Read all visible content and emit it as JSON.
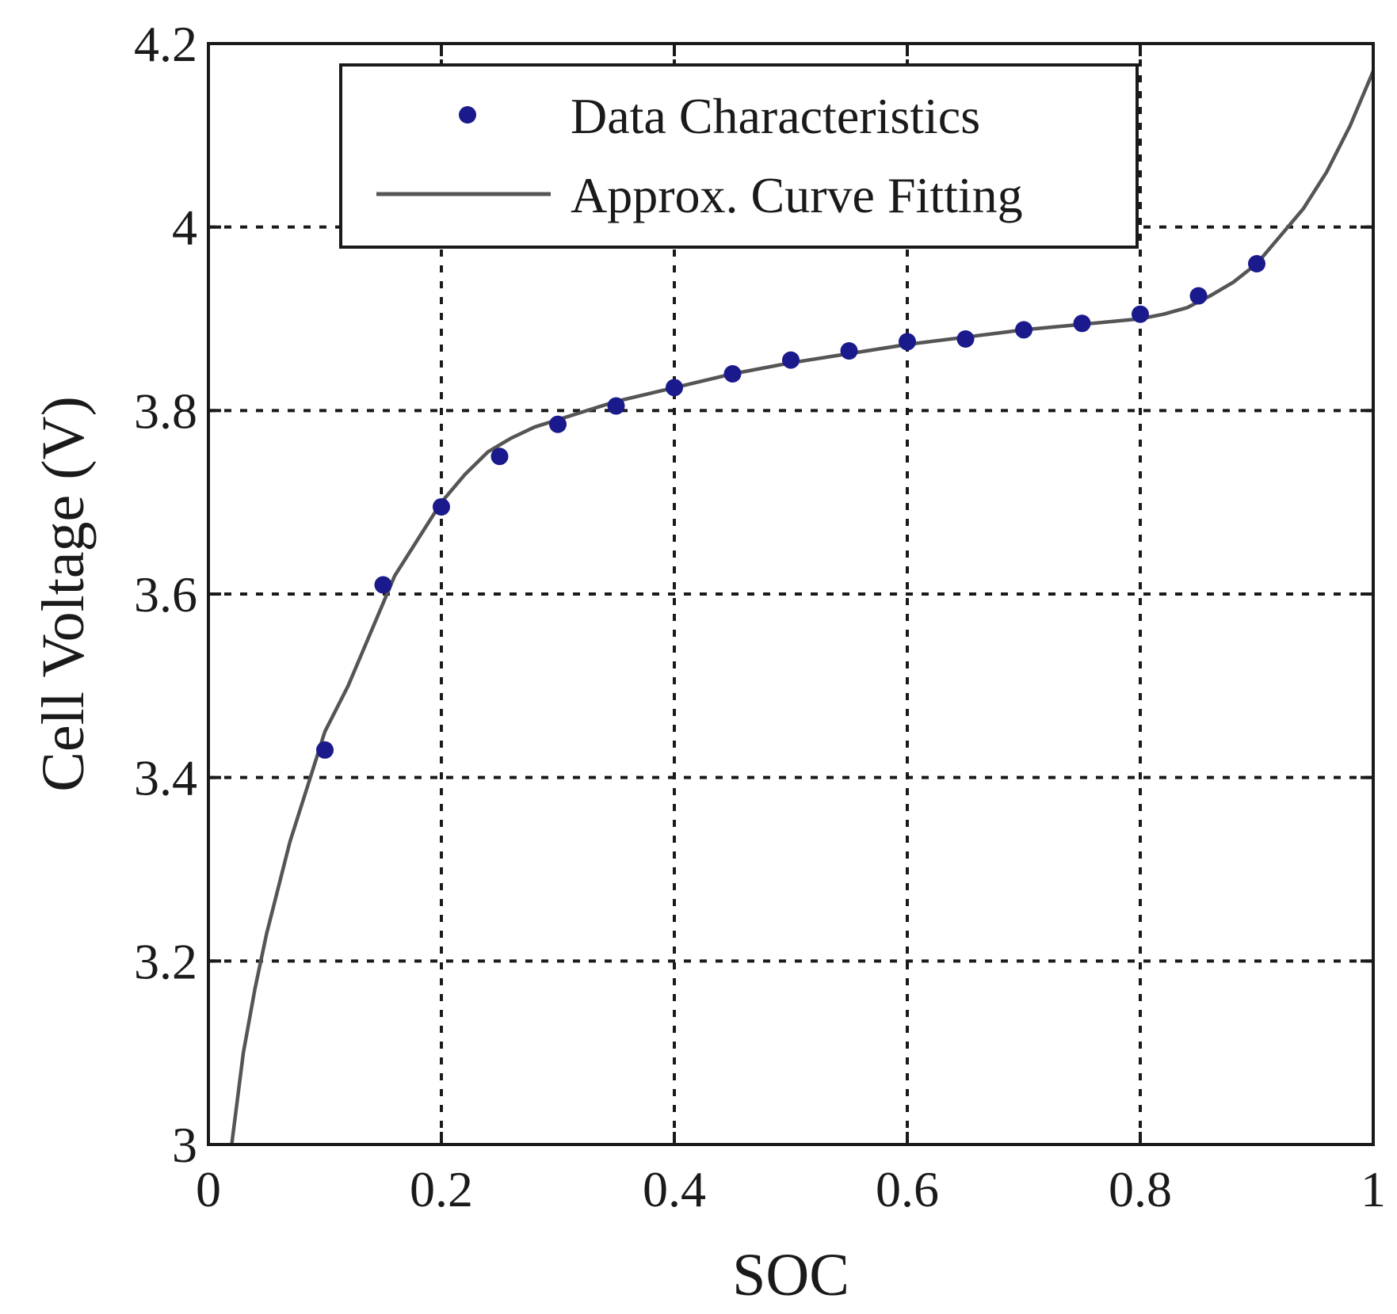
{
  "chart_data": {
    "type": "scatter",
    "xlabel": "SOC",
    "ylabel": "Cell Voltage (V)",
    "xlim": [
      0,
      1
    ],
    "ylim": [
      3,
      4.2
    ],
    "xticks": [
      0,
      0.2,
      0.4,
      0.6,
      0.8,
      1
    ],
    "xtick_labels": [
      "0",
      "0.2",
      "0.4",
      "0.6",
      "0.8",
      "1"
    ],
    "yticks": [
      3,
      3.2,
      3.4,
      3.6,
      3.8,
      4,
      4.2
    ],
    "ytick_labels": [
      "3",
      "3.2",
      "3.4",
      "3.6",
      "3.8",
      "4",
      "4.2"
    ],
    "grid": true,
    "legend_position": "top",
    "series": [
      {
        "name": "Data Characteristics",
        "kind": "scatter",
        "color": "#1a1a8c",
        "x": [
          0.1,
          0.15,
          0.2,
          0.25,
          0.3,
          0.35,
          0.4,
          0.45,
          0.5,
          0.55,
          0.6,
          0.65,
          0.7,
          0.75,
          0.8,
          0.85,
          0.9
        ],
        "y": [
          3.43,
          3.61,
          3.695,
          3.75,
          3.785,
          3.805,
          3.825,
          3.84,
          3.855,
          3.865,
          3.875,
          3.878,
          3.888,
          3.895,
          3.905,
          3.925,
          3.96
        ]
      },
      {
        "name": "Approx. Curve Fitting",
        "kind": "line",
        "color": "#555555",
        "x": [
          0.02,
          0.03,
          0.04,
          0.05,
          0.06,
          0.07,
          0.08,
          0.09,
          0.1,
          0.12,
          0.14,
          0.16,
          0.18,
          0.2,
          0.22,
          0.24,
          0.26,
          0.28,
          0.3,
          0.35,
          0.4,
          0.45,
          0.5,
          0.55,
          0.6,
          0.65,
          0.7,
          0.75,
          0.8,
          0.82,
          0.84,
          0.86,
          0.88,
          0.9,
          0.92,
          0.94,
          0.96,
          0.98,
          1.0
        ],
        "y": [
          3.0,
          3.1,
          3.17,
          3.23,
          3.28,
          3.33,
          3.37,
          3.41,
          3.45,
          3.5,
          3.56,
          3.62,
          3.66,
          3.7,
          3.73,
          3.755,
          3.77,
          3.782,
          3.79,
          3.81,
          3.825,
          3.84,
          3.852,
          3.862,
          3.872,
          3.88,
          3.888,
          3.894,
          3.9,
          3.905,
          3.912,
          3.925,
          3.94,
          3.96,
          3.99,
          4.02,
          4.06,
          4.11,
          4.17
        ]
      }
    ]
  }
}
